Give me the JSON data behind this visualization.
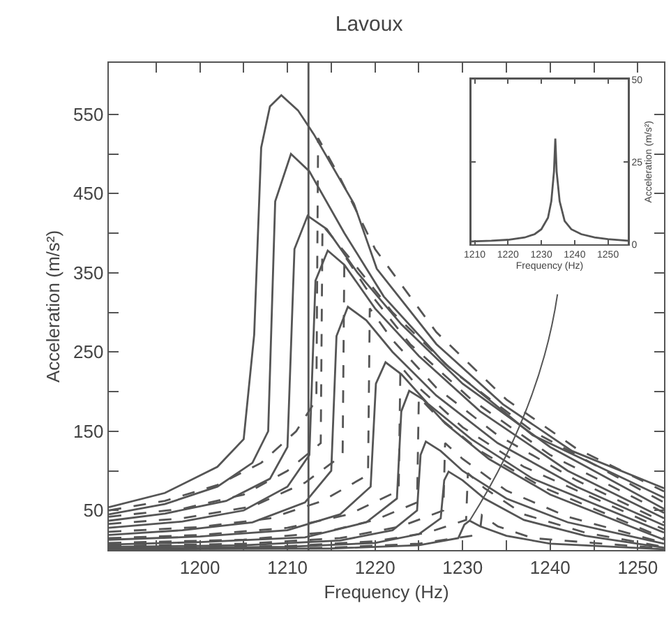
{
  "chart_data": [
    {
      "type": "line",
      "title": "Lavoux",
      "xlabel": "Frequency (Hz)",
      "ylabel": "Acceleration (m/s²)",
      "xlim": [
        1189.6,
        1253
      ],
      "ylim": [
        0,
        615
      ],
      "xticks": [
        {
          "value": 1195,
          "label": null
        },
        1200,
        {
          "value": 1205,
          "label": null
        },
        1210,
        {
          "value": 1215,
          "label": null
        },
        1220,
        {
          "value": 1225,
          "label": null
        },
        1230,
        {
          "value": 1235,
          "label": null
        },
        1240,
        {
          "value": 1245,
          "label": null
        },
        1250
      ],
      "yticks": [
        50,
        {
          "value": 100,
          "label": null
        },
        150,
        {
          "value": 200,
          "label": null
        },
        250,
        {
          "value": 300,
          "label": null
        },
        350,
        {
          "value": 400,
          "label": null
        },
        450,
        {
          "value": 500,
          "label": null
        },
        550
      ],
      "grid": false,
      "marker": "none",
      "ref_lines": [
        {
          "axis": "x",
          "value": 1212.4,
          "color": "#555555"
        }
      ],
      "series": [
        {
          "color": "#555555",
          "line_style": "solid",
          "x": [
            1189.6,
            1196,
            1202,
            1205,
            1206.2,
            1207,
            1208,
            1209.3,
            1211.2,
            1213,
            1217.6,
            1220.2,
            1227,
            1234.6,
            1242.5,
            1253
          ],
          "values": [
            54,
            72,
            105,
            140,
            272,
            508,
            560,
            574,
            555,
            525,
            437,
            355,
            260,
            184,
            125,
            78
          ]
        },
        {
          "color": "#555555",
          "line_style": "solid",
          "x": [
            1189.6,
            1196,
            1202,
            1206,
            1207.8,
            1208.6,
            1210.4,
            1212.5,
            1216.5,
            1221,
            1228,
            1238,
            1253
          ],
          "values": [
            45,
            58,
            80,
            110,
            150,
            440,
            500,
            478,
            400,
            320,
            235,
            145,
            66
          ]
        },
        {
          "color": "#555555",
          "line_style": "solid",
          "x": [
            1189.6,
            1196,
            1203,
            1208,
            1210,
            1210.8,
            1212.3,
            1214.5,
            1218,
            1223,
            1230,
            1240,
            1253
          ],
          "values": [
            37,
            46,
            62,
            90,
            130,
            380,
            422,
            405,
            350,
            285,
            210,
            130,
            52
          ]
        },
        {
          "color": "#555555",
          "line_style": "solid",
          "x": [
            1189.6,
            1198,
            1205,
            1210,
            1212.5,
            1213.2,
            1214.6,
            1216.5,
            1220,
            1225,
            1232,
            1242,
            1253
          ],
          "values": [
            28,
            36,
            50,
            80,
            120,
            340,
            378,
            360,
            305,
            245,
            175,
            100,
            40
          ]
        },
        {
          "color": "#555555",
          "line_style": "solid",
          "x": [
            1189.6,
            1198,
            1206,
            1212,
            1215,
            1215.6,
            1216.9,
            1219,
            1222,
            1227,
            1234,
            1243,
            1253
          ],
          "values": [
            19,
            25,
            35,
            60,
            100,
            270,
            307,
            290,
            250,
            195,
            135,
            80,
            31
          ]
        },
        {
          "color": "#555555",
          "line_style": "solid",
          "x": [
            1189.6,
            1200,
            1210,
            1216,
            1219.5,
            1220.1,
            1221.2,
            1223,
            1226,
            1231,
            1238,
            1253
          ],
          "values": [
            13,
            17,
            25,
            45,
            80,
            210,
            237,
            222,
            185,
            140,
            90,
            22
          ]
        },
        {
          "color": "#555555",
          "line_style": "solid",
          "x": [
            1189.6,
            1200,
            1212,
            1219,
            1222.5,
            1223,
            1223.9,
            1225.5,
            1228,
            1233,
            1240,
            1253
          ],
          "values": [
            7,
            10,
            16,
            35,
            65,
            175,
            201,
            190,
            160,
            115,
            70,
            13
          ]
        },
        {
          "color": "#555555",
          "line_style": "solid",
          "x": [
            1189.6,
            1205,
            1216,
            1222,
            1224.8,
            1225.2,
            1225.8,
            1227.5,
            1230,
            1235,
            1242,
            1253
          ],
          "values": [
            4,
            6,
            12,
            25,
            50,
            120,
            137,
            125,
            100,
            65,
            35,
            8
          ]
        },
        {
          "color": "#555555",
          "line_style": "solid",
          "x": [
            1189.6,
            1210,
            1220,
            1225,
            1227.5,
            1227.9,
            1228.4,
            1230,
            1232.5,
            1237,
            1244,
            1253
          ],
          "values": [
            2,
            4,
            9,
            20,
            40,
            88,
            99,
            88,
            65,
            38,
            18,
            3
          ]
        },
        {
          "color": "#555555",
          "line_style": "solid",
          "x": [
            1189.6,
            1215,
            1225,
            1229.5,
            1230.2,
            1230.8,
            1232,
            1235,
            1240,
            1253
          ],
          "values": [
            1,
            2,
            6,
            15,
            32,
            37,
            30,
            18,
            8,
            1
          ]
        },
        {
          "color": "#555555",
          "line_style": "dashed",
          "x": [
            1189.6,
            1196,
            1202,
            1207,
            1211,
            1213.3,
            1213.5,
            1216,
            1220,
            1227,
            1235,
            1243,
            1253
          ],
          "values": [
            50,
            62,
            82,
            110,
            150,
            190,
            520,
            470,
            380,
            275,
            190,
            128,
            74
          ]
        },
        {
          "color": "#555555",
          "line_style": "dashed",
          "x": [
            1189.6,
            1198,
            1205,
            1210,
            1213.8,
            1214,
            1217,
            1222,
            1229,
            1238,
            1253
          ],
          "values": [
            42,
            52,
            70,
            100,
            135,
            410,
            370,
            300,
            225,
            150,
            60
          ]
        },
        {
          "color": "#555555",
          "line_style": "dashed",
          "x": [
            1189.6,
            1198,
            1206,
            1212,
            1216.3,
            1216.5,
            1219,
            1224,
            1231,
            1240,
            1253
          ],
          "values": [
            33,
            40,
            55,
            85,
            120,
            372,
            330,
            260,
            190,
            120,
            47
          ]
        },
        {
          "color": "#555555",
          "line_style": "dashed",
          "x": [
            1189.6,
            1200,
            1208,
            1214,
            1219.2,
            1219.4,
            1222,
            1227,
            1234,
            1243,
            1253
          ],
          "values": [
            23,
            29,
            40,
            62,
            95,
            305,
            265,
            205,
            145,
            88,
            35
          ]
        },
        {
          "color": "#555555",
          "line_style": "dashed",
          "x": [
            1189.6,
            1200,
            1210,
            1217,
            1222.7,
            1222.9,
            1225,
            1230,
            1237,
            1253
          ],
          "values": [
            15,
            19,
            28,
            45,
            75,
            232,
            205,
            155,
            105,
            26
          ]
        },
        {
          "color": "#555555",
          "line_style": "dashed",
          "x": [
            1189.6,
            1205,
            1214,
            1220,
            1224.8,
            1225,
            1227,
            1232,
            1239,
            1253
          ],
          "values": [
            9,
            13,
            22,
            38,
            60,
            193,
            170,
            125,
            80,
            15
          ]
        },
        {
          "color": "#555555",
          "line_style": "dashed",
          "x": [
            1189.6,
            1205,
            1216,
            1223,
            1227.8,
            1228,
            1230,
            1235,
            1242,
            1253
          ],
          "values": [
            5,
            8,
            15,
            30,
            50,
            135,
            115,
            75,
            42,
            9
          ]
        },
        {
          "color": "#555555",
          "line_style": "dashed",
          "x": [
            1189.6,
            1210,
            1220,
            1226,
            1230.4,
            1230.6,
            1232.5,
            1237,
            1244,
            1253
          ],
          "values": [
            3,
            5,
            11,
            22,
            38,
            97,
            78,
            45,
            22,
            4
          ]
        },
        {
          "color": "#555555",
          "line_style": "dashed",
          "x": [
            1189.6,
            1215,
            1225,
            1231,
            1232,
            1232.2,
            1234,
            1238,
            1253
          ],
          "values": [
            1,
            3,
            8,
            18,
            25,
            44,
            30,
            15,
            2
          ]
        }
      ]
    },
    {
      "type": "line",
      "xlabel": "Frequency (Hz)",
      "ylabel": "Acceleration (m/s²)",
      "xlim": [
        1209,
        1256
      ],
      "ylim": [
        0,
        50
      ],
      "xticks": [
        1210,
        1220,
        1230,
        1240,
        1250
      ],
      "yticks": [
        0,
        25,
        50
      ],
      "grid": false,
      "marker": "none",
      "series": [
        {
          "color": "#555555",
          "line_style": "solid",
          "x": [
            1209,
            1215,
            1220,
            1225,
            1228,
            1230,
            1232,
            1233,
            1233.8,
            1234.2,
            1234.6,
            1235.5,
            1237,
            1239,
            1242,
            1246,
            1250,
            1256
          ],
          "values": [
            0.8,
            1,
            1.3,
            2,
            3,
            4.5,
            8,
            13,
            22,
            32,
            22,
            13,
            7,
            4.5,
            3,
            2,
            1.5,
            1
          ]
        }
      ]
    }
  ]
}
